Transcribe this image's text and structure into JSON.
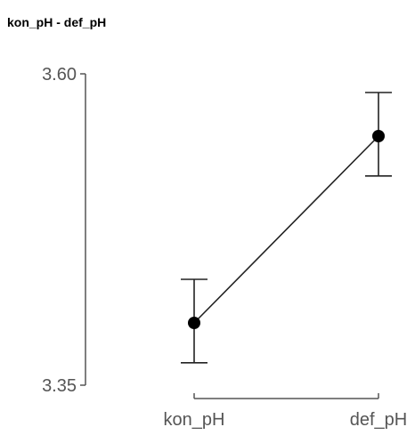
{
  "chart_data": {
    "type": "line",
    "title": "kon_pH - def_pH",
    "xlabel": "",
    "ylabel": "",
    "categories": [
      "kon_pH",
      "def_pH"
    ],
    "series": [
      {
        "values": [
          3.4,
          3.55
        ],
        "error_lower": [
          3.368,
          3.518
        ],
        "error_upper": [
          3.435,
          3.585
        ]
      }
    ],
    "ylim": [
      3.35,
      3.6
    ],
    "y_ticks": [
      "3.35",
      "3.60"
    ],
    "grid": false,
    "legend": "none",
    "colors": {
      "line": "#222222",
      "marker": "#000000",
      "axis": "#555555",
      "tick_label": "#555555"
    }
  }
}
